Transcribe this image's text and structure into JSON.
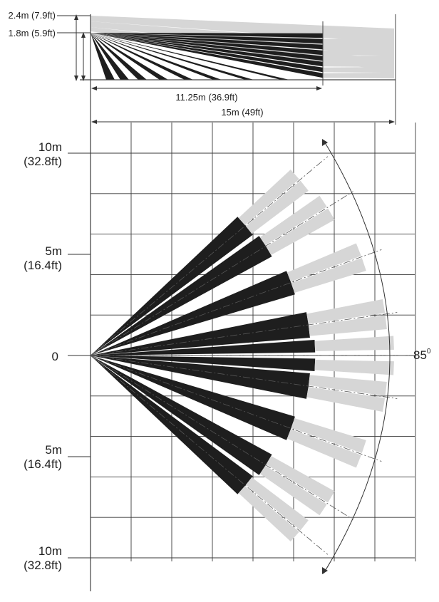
{
  "side_view": {
    "height_high": "2.4m (7.9ft)",
    "height_low": "1.8m (5.9ft)",
    "range_short": "11.25m (36.9ft)",
    "range_full": "15m (49ft)"
  },
  "top_view": {
    "y_labels": [
      {
        "value": "10m",
        "imperial": "(32.8ft)"
      },
      {
        "value": "5m",
        "imperial": "(16.4ft)"
      },
      {
        "value": "0"
      },
      {
        "value": "5m",
        "imperial": "(16.4ft)"
      },
      {
        "value": "10m",
        "imperial": "(32.8ft)"
      }
    ],
    "angle_label": "85",
    "angle_unit": "0",
    "beam_angles_deg": [
      -40,
      -32,
      -20,
      -8,
      8,
      20,
      32,
      40
    ]
  },
  "colors": {
    "dark_zone": "#1e1e1e",
    "light_zone": "#d6d6d6",
    "grid": "#3a3a3a"
  }
}
